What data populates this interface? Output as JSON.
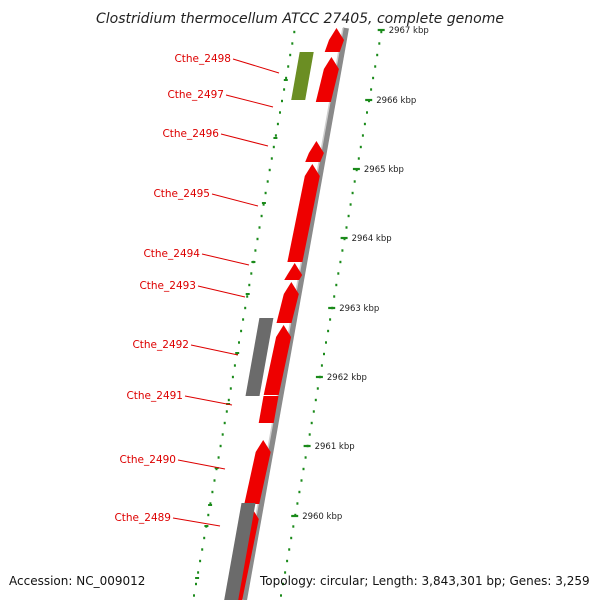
{
  "title": "Clostridium thermocellum ATCC 27405, complete genome",
  "footer": {
    "accession": "Accession: NC_009012",
    "summary": "Topology: circular; Length: 3,843,301 bp; Genes: 3,259"
  },
  "colors": {
    "gene_forward": "#ee0000",
    "gene_grey": "#6b6b6b",
    "gene_olive": "#6b8e23",
    "backbone": "#8a8a8a",
    "dots": "#1a8a1a",
    "label": "#dd0000"
  },
  "ticks": [
    {
      "label": "2967 kbp"
    },
    {
      "label": "2966 kbp"
    },
    {
      "label": "2965 kbp"
    },
    {
      "label": "2964 kbp"
    },
    {
      "label": "2963 kbp"
    },
    {
      "label": "2962 kbp"
    },
    {
      "label": "2961 kbp"
    },
    {
      "label": "2960 kbp"
    }
  ],
  "gene_labels": [
    {
      "label": "Cthe_2498"
    },
    {
      "label": "Cthe_2497"
    },
    {
      "label": "Cthe_2496"
    },
    {
      "label": "Cthe_2495"
    },
    {
      "label": "Cthe_2494"
    },
    {
      "label": "Cthe_2493"
    },
    {
      "label": "Cthe_2492"
    },
    {
      "label": "Cthe_2491"
    },
    {
      "label": "Cthe_2490"
    },
    {
      "label": "Cthe_2489"
    }
  ]
}
